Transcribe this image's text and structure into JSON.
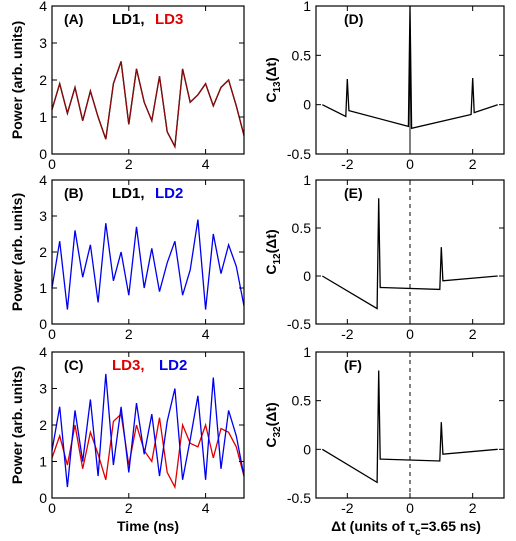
{
  "colors": {
    "LD1": "#000000",
    "LD2": "#0000ee",
    "LD3": "#e00000",
    "LD1_LD3_overlay": "#8b0a0a",
    "frame": "#000000"
  },
  "chart_data": [
    {
      "type": "line",
      "panel": "(A)",
      "xlabel": "",
      "ylabel": "Power (arb. units)",
      "xlim": [
        0,
        5
      ],
      "ylim": [
        0,
        4
      ],
      "xticks": [
        0,
        2,
        4
      ],
      "yticks": [
        0,
        1,
        2,
        3,
        4
      ],
      "legend": [
        {
          "name": "LD1,",
          "color": "#000000"
        },
        {
          "name": "LD3",
          "color": "#e00000"
        }
      ],
      "series": [
        {
          "name": "LD1",
          "color": "#000000",
          "x": [
            0,
            0.2,
            0.4,
            0.6,
            0.8,
            1.0,
            1.2,
            1.4,
            1.6,
            1.8,
            2.0,
            2.2,
            2.4,
            2.6,
            2.8,
            3.0,
            3.2,
            3.4,
            3.6,
            3.8,
            4.0,
            4.2,
            4.4,
            4.6,
            4.8,
            5.0
          ],
          "y": [
            1.2,
            1.9,
            1.1,
            1.8,
            0.9,
            1.7,
            1.0,
            0.4,
            1.9,
            2.5,
            0.8,
            2.3,
            1.4,
            0.9,
            2.1,
            0.6,
            0.2,
            2.3,
            1.4,
            1.6,
            1.9,
            1.3,
            1.8,
            2.0,
            1.3,
            0.5
          ]
        },
        {
          "name": "LD3",
          "color": "#e00000",
          "x": [
            0,
            0.2,
            0.4,
            0.6,
            0.8,
            1.0,
            1.2,
            1.4,
            1.6,
            1.8,
            2.0,
            2.2,
            2.4,
            2.6,
            2.8,
            3.0,
            3.2,
            3.4,
            3.6,
            3.8,
            4.0,
            4.2,
            4.4,
            4.6,
            4.8,
            5.0
          ],
          "y": [
            1.2,
            1.9,
            1.1,
            1.8,
            0.9,
            1.7,
            1.0,
            0.4,
            1.9,
            2.5,
            0.8,
            2.3,
            1.4,
            0.9,
            2.1,
            0.6,
            0.2,
            2.3,
            1.4,
            1.6,
            1.9,
            1.3,
            1.8,
            2.0,
            1.3,
            0.5
          ]
        }
      ]
    },
    {
      "type": "line",
      "panel": "(B)",
      "xlabel": "",
      "ylabel": "Power (arb. units)",
      "xlim": [
        0,
        5
      ],
      "ylim": [
        0,
        4
      ],
      "xticks": [
        0,
        2,
        4
      ],
      "yticks": [
        0,
        1,
        2,
        3,
        4
      ],
      "legend": [
        {
          "name": "LD1,",
          "color": "#000000"
        },
        {
          "name": "LD2",
          "color": "#0000ee"
        }
      ],
      "series": [
        {
          "name": "LD2",
          "color": "#0000ee",
          "x": [
            0,
            0.2,
            0.4,
            0.6,
            0.8,
            1.0,
            1.2,
            1.4,
            1.6,
            1.8,
            2.0,
            2.2,
            2.4,
            2.6,
            2.8,
            3.0,
            3.2,
            3.4,
            3.6,
            3.8,
            4.0,
            4.2,
            4.4,
            4.6,
            4.8,
            5.0
          ],
          "y": [
            1.0,
            2.3,
            0.4,
            2.6,
            1.3,
            2.2,
            0.6,
            2.8,
            1.2,
            2.0,
            0.8,
            2.7,
            1.0,
            2.1,
            0.9,
            1.7,
            2.3,
            0.8,
            1.5,
            2.9,
            0.4,
            2.5,
            1.4,
            2.2,
            1.6,
            0.5
          ]
        }
      ]
    },
    {
      "type": "line",
      "panel": "(C)",
      "xlabel": "Time (ns)",
      "ylabel": "Power (arb. units)",
      "xlim": [
        0,
        5
      ],
      "ylim": [
        0,
        4
      ],
      "xticks": [
        0,
        2,
        4
      ],
      "yticks": [
        0,
        1,
        2,
        3,
        4
      ],
      "legend": [
        {
          "name": "LD3,",
          "color": "#e00000"
        },
        {
          "name": "LD2",
          "color": "#0000ee"
        }
      ],
      "series": [
        {
          "name": "LD3",
          "color": "#e00000",
          "x": [
            0,
            0.2,
            0.4,
            0.6,
            0.8,
            1.0,
            1.2,
            1.4,
            1.6,
            1.8,
            2.0,
            2.2,
            2.4,
            2.6,
            2.8,
            3.0,
            3.2,
            3.4,
            3.6,
            3.8,
            4.0,
            4.2,
            4.4,
            4.6,
            4.8,
            5.0
          ],
          "y": [
            1.1,
            1.7,
            0.9,
            2.0,
            0.8,
            1.8,
            1.2,
            0.5,
            2.1,
            2.3,
            0.9,
            2.0,
            1.3,
            1.0,
            2.2,
            0.7,
            0.3,
            2.0,
            1.5,
            1.4,
            2.0,
            1.1,
            1.9,
            1.8,
            1.4,
            0.6
          ]
        },
        {
          "name": "LD2",
          "color": "#0000ee",
          "x": [
            0,
            0.2,
            0.4,
            0.6,
            0.8,
            1.0,
            1.2,
            1.4,
            1.6,
            1.8,
            2.0,
            2.2,
            2.4,
            2.6,
            2.8,
            3.0,
            3.2,
            3.4,
            3.6,
            3.8,
            4.0,
            4.2,
            4.4,
            4.6,
            4.8,
            5.0
          ],
          "y": [
            1.3,
            2.5,
            0.3,
            2.4,
            1.0,
            2.7,
            0.6,
            3.4,
            0.9,
            2.5,
            0.7,
            2.6,
            1.2,
            2.3,
            0.6,
            2.1,
            3.0,
            0.5,
            1.6,
            2.8,
            0.5,
            3.3,
            0.8,
            2.4,
            1.7,
            0.6
          ]
        }
      ]
    },
    {
      "type": "line",
      "panel": "(D)",
      "xlabel": "",
      "ylabel": "C13(Δt)",
      "xlim": [
        -3,
        3
      ],
      "ylim": [
        -0.5,
        1
      ],
      "xticks": [
        -2,
        0,
        2
      ],
      "yticks": [
        -0.5,
        0,
        0.5,
        1
      ],
      "zero_line": "solid",
      "series": [
        {
          "name": "C13",
          "color": "#000000",
          "x": [
            -2.8,
            -2.05,
            -2.0,
            -1.95,
            -0.05,
            0.0,
            0.05,
            1.95,
            2.0,
            2.05,
            2.8
          ],
          "y": [
            0,
            -0.12,
            0.26,
            -0.06,
            -0.22,
            1.0,
            -0.24,
            -0.1,
            0.27,
            -0.08,
            0
          ]
        }
      ]
    },
    {
      "type": "line",
      "panel": "(E)",
      "xlabel": "",
      "ylabel": "C12(Δt)",
      "xlim": [
        -3,
        3
      ],
      "ylim": [
        -0.5,
        1
      ],
      "xticks": [
        -2,
        0,
        2
      ],
      "yticks": [
        -0.5,
        0,
        0.5,
        1
      ],
      "zero_line": "dashed",
      "series": [
        {
          "name": "C12",
          "color": "#000000",
          "x": [
            -2.8,
            -1.05,
            -1.0,
            -0.95,
            0.95,
            1.0,
            1.05,
            2.8
          ],
          "y": [
            0,
            -0.34,
            0.81,
            -0.12,
            -0.14,
            0.3,
            -0.05,
            0
          ]
        }
      ]
    },
    {
      "type": "line",
      "panel": "(F)",
      "xlabel": "Δt (units of τc=3.65 ns)",
      "ylabel": "C32(Δt)",
      "xlim": [
        -3,
        3
      ],
      "ylim": [
        -0.5,
        1
      ],
      "xticks": [
        -2,
        0,
        2
      ],
      "yticks": [
        -0.5,
        0,
        0.5,
        1
      ],
      "zero_line": "dashed",
      "series": [
        {
          "name": "C32",
          "color": "#000000",
          "x": [
            -2.8,
            -1.05,
            -1.0,
            -0.95,
            0.95,
            1.0,
            1.05,
            2.8
          ],
          "y": [
            0,
            -0.34,
            0.81,
            -0.1,
            -0.12,
            0.28,
            -0.05,
            0
          ]
        }
      ]
    }
  ]
}
